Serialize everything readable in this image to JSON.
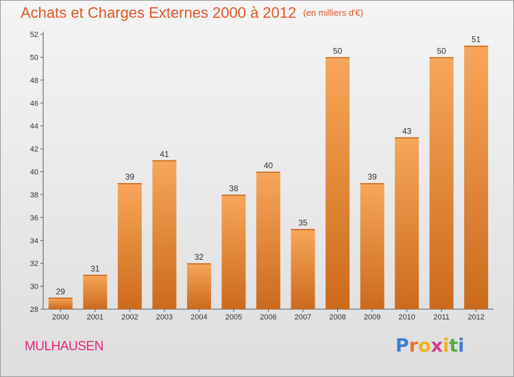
{
  "title": "Achats et Charges Externes 2000 à 2012",
  "unit": "(en milliers d'€)",
  "city": "MULHAUSEN",
  "logo": {
    "text": "Proxiti",
    "letter_colors": [
      "#3b7fd0",
      "#e8742a",
      "#f0b21c",
      "#d93a8a",
      "#f0b21c",
      "#5aab3c",
      "#3b7fd0"
    ]
  },
  "colors": {
    "title": "#e0572a",
    "city": "#e2267a",
    "bar_light": "#f7a75a",
    "bar_dark": "#cc6a1c"
  },
  "chart_data": {
    "type": "bar",
    "categories": [
      "2000",
      "2001",
      "2002",
      "2003",
      "2004",
      "2005",
      "2006",
      "2007",
      "2008",
      "2009",
      "2010",
      "2011",
      "2012"
    ],
    "values": [
      29,
      31,
      39,
      41,
      32,
      38,
      40,
      35,
      50,
      39,
      43,
      50,
      51
    ],
    "ylim": [
      28,
      52
    ],
    "yticks": [
      28,
      30,
      32,
      34,
      36,
      38,
      40,
      42,
      44,
      46,
      48,
      50,
      52
    ],
    "grid": false,
    "data_labels": true
  }
}
